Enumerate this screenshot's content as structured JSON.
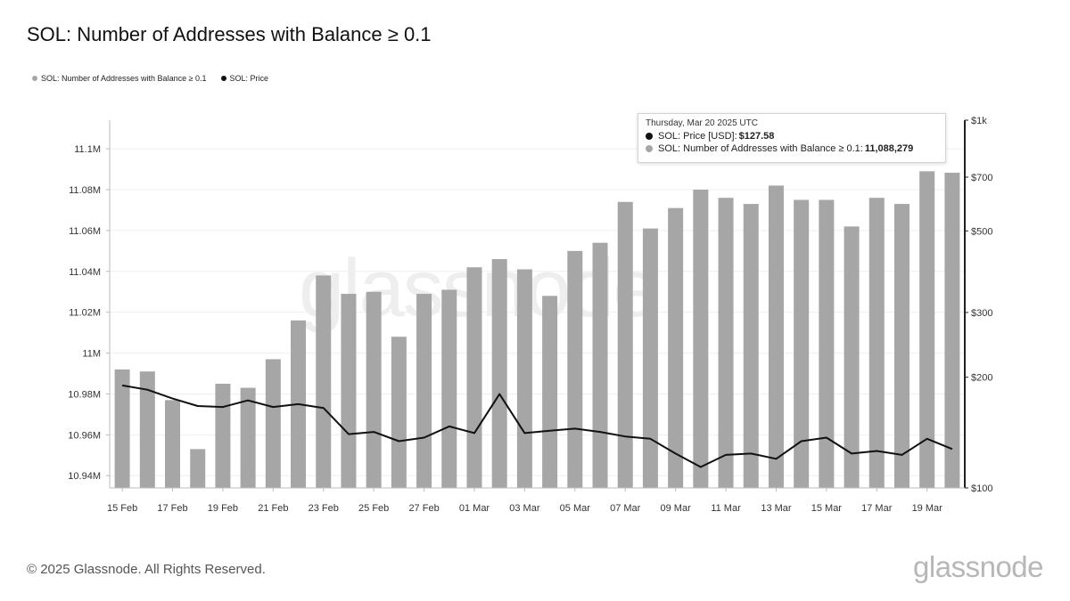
{
  "title": "SOL: Number of Addresses with Balance ≥ 0.1",
  "legend": [
    {
      "label": "SOL: Number of Addresses with Balance ≥ 0.1",
      "color": "#a6a6a6"
    },
    {
      "label": "SOL: Price",
      "color": "#111111"
    }
  ],
  "tooltip": {
    "date": "Thursday, Mar 20 2025 UTC",
    "price_label": "SOL: Price [USD]: ",
    "price_value": "$127.58",
    "addr_label": "SOL: Number of Addresses with Balance ≥ 0.1: ",
    "addr_value": "11,088,279"
  },
  "footer": {
    "copyright": "© 2025 Glassnode. All Rights Reserved.",
    "logo": "glassnode",
    "watermark": "glassnode"
  },
  "colors": {
    "bars": "#a6a6a6",
    "price_line": "#111111",
    "axis": "#222222"
  },
  "chart_data": {
    "type": "bar",
    "categories": [
      "15 Feb",
      "16 Feb",
      "17 Feb",
      "18 Feb",
      "19 Feb",
      "20 Feb",
      "21 Feb",
      "22 Feb",
      "23 Feb",
      "24 Feb",
      "25 Feb",
      "26 Feb",
      "27 Feb",
      "28 Feb",
      "01 Mar",
      "02 Mar",
      "03 Mar",
      "04 Mar",
      "05 Mar",
      "06 Mar",
      "07 Mar",
      "08 Mar",
      "09 Mar",
      "10 Mar",
      "11 Mar",
      "12 Mar",
      "13 Mar",
      "14 Mar",
      "15 Mar",
      "16 Mar",
      "17 Mar",
      "18 Mar",
      "19 Mar",
      "20 Mar"
    ],
    "x_tick_labels": [
      "15 Feb",
      "17 Feb",
      "19 Feb",
      "21 Feb",
      "23 Feb",
      "25 Feb",
      "27 Feb",
      "01 Mar",
      "03 Mar",
      "05 Mar",
      "07 Mar",
      "09 Mar",
      "11 Mar",
      "13 Mar",
      "15 Mar",
      "17 Mar",
      "19 Mar"
    ],
    "series": [
      {
        "name": "SOL: Number of Addresses with Balance ≥ 0.1",
        "type": "bar",
        "axis": "left",
        "values": [
          10992000,
          10991000,
          10977000,
          10953000,
          10985000,
          10983000,
          10997000,
          11016000,
          11038000,
          11029000,
          11030000,
          11008000,
          11029000,
          11031000,
          11042000,
          11046000,
          11041000,
          11028000,
          11050000,
          11054000,
          11074000,
          11061000,
          11071000,
          11080000,
          11076000,
          11073000,
          11082000,
          11075000,
          11075000,
          11062000,
          11076000,
          11073000,
          11089000,
          11088279
        ]
      },
      {
        "name": "SOL: Price",
        "type": "line",
        "axis": "right",
        "values": [
          190,
          185,
          175,
          167,
          166,
          173,
          166,
          169,
          165,
          140,
          142,
          134,
          137,
          147,
          141,
          180,
          141,
          143,
          145,
          142,
          138,
          136,
          124,
          114,
          123,
          124,
          120,
          134,
          137,
          124,
          126,
          123,
          136,
          127.58
        ]
      }
    ],
    "left_axis": {
      "ticks": [
        "10.94M",
        "10.96M",
        "10.98M",
        "11M",
        "11.02M",
        "11.04M",
        "11.06M",
        "11.08M",
        "11.1M"
      ],
      "tick_values": [
        10940000,
        10960000,
        10980000,
        11000000,
        11020000,
        11040000,
        11060000,
        11080000,
        11100000
      ],
      "ylim": [
        10934000,
        11114000
      ]
    },
    "right_axis": {
      "scale": "log",
      "ticks": [
        "$100",
        "$200",
        "$300",
        "$500",
        "$700",
        "$1k"
      ],
      "tick_values": [
        100,
        200,
        300,
        500,
        700,
        1000
      ],
      "ylim": [
        100,
        1000
      ]
    },
    "grid": true,
    "legend_position": "top-left"
  }
}
